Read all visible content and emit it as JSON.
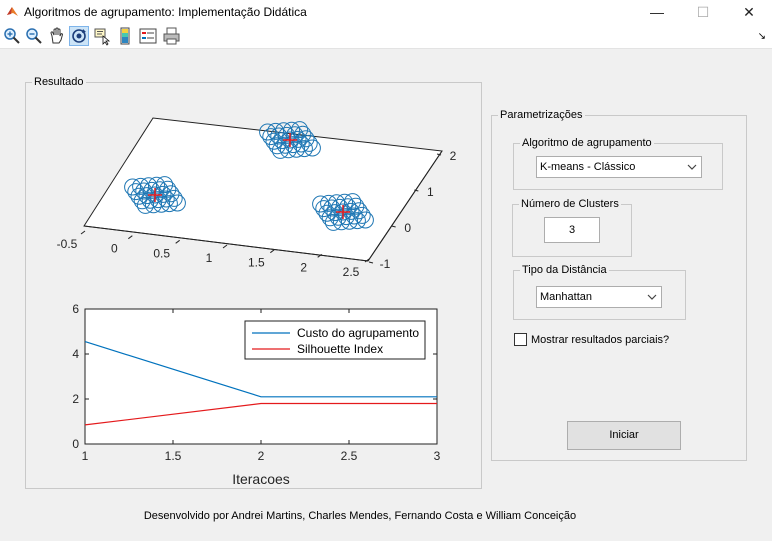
{
  "window": {
    "title": "Algoritmos de agrupamento: Implementação Didática",
    "minimize_label": "—",
    "maximize_label": "☐",
    "close_label": "✕"
  },
  "toolbar": {
    "items": [
      "zoom-in-icon",
      "zoom-out-icon",
      "pan-hand-icon",
      "rotate-3d-icon",
      "data-cursor-icon",
      "insert-colorbar-icon",
      "insert-legend-icon",
      "print-icon"
    ],
    "overflow_label": "↘"
  },
  "resultado": {
    "label": "Resultado"
  },
  "plot3d": {
    "x_ticks": [
      "-0.5",
      "0",
      "0.5",
      "1",
      "1.5",
      "2",
      "2.5"
    ],
    "y_ticks": [
      "-1",
      "0",
      "1",
      "2"
    ]
  },
  "chart_data": {
    "type": "line",
    "x": [
      1,
      2,
      3
    ],
    "series": [
      {
        "name": "Custo do agrupamento",
        "values": [
          4.55,
          2.1,
          2.1
        ],
        "color": "#0072bd"
      },
      {
        "name": "Silhouette Index",
        "values": [
          0.85,
          1.8,
          1.8
        ],
        "color": "#e41a1c"
      }
    ],
    "xlabel": "Iteracoes",
    "xlim": [
      1,
      3
    ],
    "ylim": [
      0,
      6
    ],
    "x_ticks": [
      1,
      1.5,
      2,
      2.5,
      3
    ],
    "y_ticks": [
      0,
      2,
      4,
      6
    ],
    "legend": "top-right",
    "grid": false
  },
  "param": {
    "label": "Parametrizações",
    "algoritmo": {
      "label": "Algoritmo de agrupamento",
      "value": "K-means - Clássico"
    },
    "clusters": {
      "label": "Número de Clusters",
      "value": "3"
    },
    "distancia": {
      "label": "Tipo da Distância",
      "value": "Manhattan"
    },
    "parciais": {
      "label": "Mostrar resultados parciais?",
      "checked": false
    },
    "iniciar_label": "Iniciar"
  },
  "footer": {
    "text": "Desenvolvido por Andrei Martins, Charles Mendes, Fernando Costa e William Conceição"
  }
}
